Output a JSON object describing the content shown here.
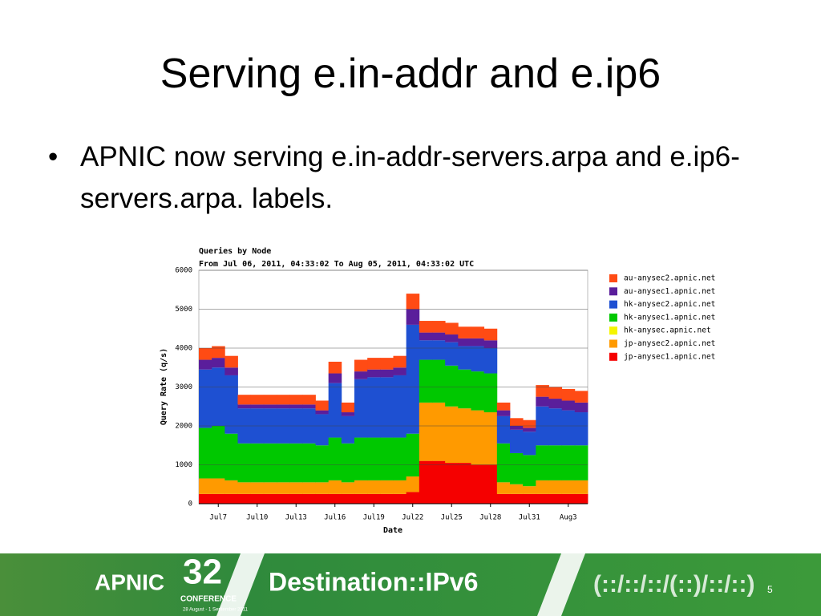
{
  "slide": {
    "title": "Serving e.in-addr and e.ip6",
    "bullets": [
      "APNIC now serving e.in-addr-servers.arpa and e.ip6-servers.arpa. labels."
    ]
  },
  "footer": {
    "org": "APNIC",
    "number": "32",
    "conference": "CONFERENCE",
    "dates": "28 August - 1 September 2011",
    "theme": "Destination::IPv6",
    "page": "5"
  },
  "chart_data": {
    "type": "stacked-area",
    "title": "Queries by Node",
    "subtitle": "From Jul 06, 2011, 04:33:02 To Aug 05, 2011, 04:33:02 UTC",
    "y_label": "Query Rate (q/s)",
    "x_label": "Date",
    "categories": [
      null,
      "Jul7",
      null,
      null,
      "Jul10",
      null,
      null,
      "Jul13",
      null,
      null,
      "Jul16",
      null,
      null,
      "Jul19",
      null,
      null,
      "Jul22",
      null,
      null,
      "Jul25",
      null,
      null,
      "Jul28",
      null,
      null,
      "Jul31",
      null,
      null,
      "Aug3",
      null
    ],
    "ylim": [
      0,
      6000
    ],
    "yticks": [
      0,
      1000,
      2000,
      3000,
      4000,
      5000,
      6000
    ],
    "grid": true,
    "series": [
      {
        "name": "jp-anysec1.apnic.net",
        "color": "#f50000",
        "values": [
          250,
          250,
          250,
          250,
          250,
          250,
          250,
          250,
          250,
          250,
          250,
          250,
          250,
          250,
          250,
          250,
          300,
          1100,
          1100,
          1050,
          1050,
          1000,
          1000,
          250,
          250,
          250,
          250,
          250,
          250,
          250
        ]
      },
      {
        "name": "jp-anysec2.apnic.net",
        "color": "#ff9a00",
        "values": [
          400,
          400,
          350,
          300,
          300,
          300,
          300,
          300,
          300,
          300,
          350,
          300,
          350,
          350,
          350,
          350,
          400,
          1500,
          1500,
          1450,
          1400,
          1400,
          1350,
          300,
          250,
          200,
          350,
          350,
          350,
          350
        ]
      },
      {
        "name": "hk-anysec.apnic.net",
        "color": "#f5f500",
        "values": [
          0,
          0,
          0,
          0,
          0,
          0,
          0,
          0,
          0,
          0,
          0,
          0,
          0,
          0,
          0,
          0,
          0,
          0,
          0,
          0,
          0,
          0,
          0,
          0,
          0,
          0,
          0,
          0,
          0,
          0
        ]
      },
      {
        "name": "hk-anysec1.apnic.net",
        "color": "#00c800",
        "values": [
          1300,
          1350,
          1200,
          1000,
          1000,
          1000,
          1000,
          1000,
          1000,
          950,
          1100,
          1000,
          1100,
          1100,
          1100,
          1100,
          1100,
          1100,
          1100,
          1050,
          1000,
          1000,
          1000,
          1000,
          800,
          800,
          900,
          900,
          900,
          900
        ]
      },
      {
        "name": "hk-anysec2.apnic.net",
        "color": "#1e50d2",
        "values": [
          1500,
          1500,
          1500,
          900,
          900,
          900,
          900,
          900,
          900,
          800,
          1400,
          700,
          1500,
          1550,
          1550,
          1600,
          2800,
          500,
          500,
          600,
          600,
          650,
          650,
          700,
          600,
          600,
          1000,
          950,
          900,
          850
        ]
      },
      {
        "name": "au-anysec1.apnic.net",
        "color": "#5a1e9b",
        "values": [
          250,
          250,
          200,
          100,
          100,
          100,
          100,
          100,
          100,
          100,
          250,
          100,
          200,
          200,
          200,
          200,
          400,
          200,
          200,
          200,
          200,
          200,
          200,
          150,
          100,
          100,
          250,
          250,
          250,
          250
        ]
      },
      {
        "name": "au-anysec2.apnic.net",
        "color": "#ff4b14",
        "values": [
          300,
          300,
          300,
          250,
          250,
          250,
          250,
          250,
          250,
          250,
          300,
          250,
          300,
          300,
          300,
          300,
          400,
          300,
          300,
          300,
          300,
          300,
          300,
          200,
          200,
          200,
          300,
          300,
          300,
          300
        ]
      }
    ]
  }
}
